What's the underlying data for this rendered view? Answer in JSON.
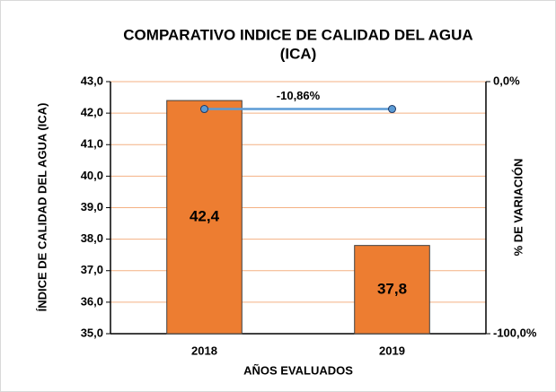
{
  "chart_data": {
    "type": "bar",
    "title": [
      "COMPARATIVO INDICE DE CALIDAD DEL AGUA",
      "(ICA)"
    ],
    "y_label": "ÍNDICE DE CALIDAD DEL AGUA (ICA)",
    "y2_label": "% DE VARIACIÓN",
    "x_label": "AÑOS EVALUADOS",
    "categories": [
      "2018",
      "2019"
    ],
    "series": [
      {
        "name": "ICA",
        "type": "bar",
        "color": "#ed7d31",
        "values": [
          42.4,
          37.8
        ],
        "value_labels": [
          "42,4",
          "37,8"
        ]
      },
      {
        "name": "% VARIACIÓN",
        "type": "line",
        "axis": "y2",
        "color": "#5b9bd5",
        "values": [
          -10.86,
          -10.86
        ]
      }
    ],
    "annotations": [
      {
        "text": "-10,86%",
        "value": -10.86
      }
    ],
    "ylim": [
      35,
      43
    ],
    "yticks": [
      {
        "value": 35,
        "label": "35,0"
      },
      {
        "value": 36,
        "label": "36,0"
      },
      {
        "value": 37,
        "label": "37,0"
      },
      {
        "value": 38,
        "label": "38,0"
      },
      {
        "value": 39,
        "label": "39,0"
      },
      {
        "value": 40,
        "label": "40,0"
      },
      {
        "value": 41,
        "label": "41,0"
      },
      {
        "value": 42,
        "label": "42,0"
      },
      {
        "value": 43,
        "label": "43,0"
      }
    ],
    "y2lim": [
      -100,
      0
    ],
    "y2ticks": [
      {
        "value": 0,
        "label": "0,0%"
      },
      {
        "value": -100,
        "label": "-100,0%"
      }
    ],
    "grid": true,
    "grid_color": "#f4b183"
  }
}
